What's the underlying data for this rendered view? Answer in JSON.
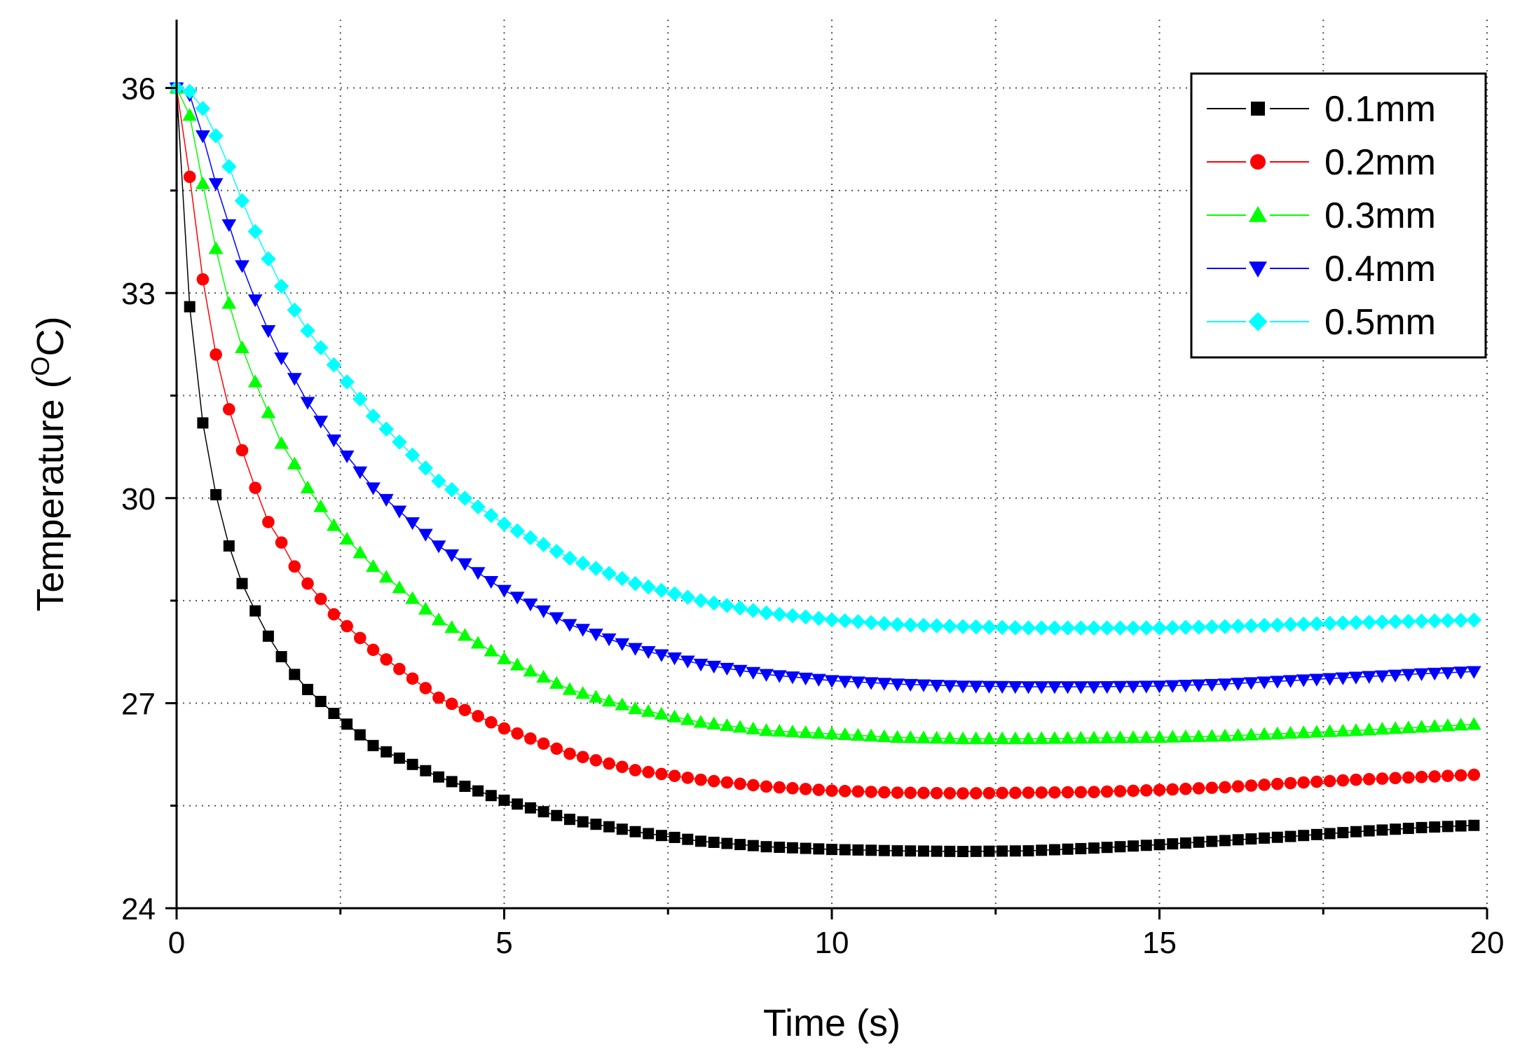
{
  "chart_data": {
    "type": "line",
    "title": "",
    "xlabel": "Time (s)",
    "ylabel": "Temperature (",
    "ylabel_unit_super": "O",
    "ylabel_unit_tail": "C)",
    "xlim": [
      0,
      20
    ],
    "ylim": [
      24,
      37
    ],
    "x_ticks": [
      0,
      5,
      10,
      15,
      20
    ],
    "x_tick_labels": [
      "0",
      "5",
      "10",
      "15",
      "20"
    ],
    "y_ticks": [
      24,
      27,
      30,
      33,
      36
    ],
    "y_tick_labels": [
      "24",
      "27",
      "30",
      "33",
      "36"
    ],
    "grid": true,
    "legend_position": "top-right",
    "x_start": 0,
    "x_step": 0.2,
    "series": [
      {
        "name": "0.1mm",
        "color": "#000000",
        "marker": "square",
        "anchors": [
          [
            0,
            36.0
          ],
          [
            0.2,
            32.8
          ],
          [
            0.4,
            31.1
          ],
          [
            0.6,
            30.05
          ],
          [
            0.8,
            29.3
          ],
          [
            1.0,
            28.75
          ],
          [
            1.2,
            28.35
          ],
          [
            1.4,
            27.98
          ],
          [
            1.6,
            27.68
          ],
          [
            1.8,
            27.42
          ],
          [
            2.0,
            27.2
          ],
          [
            2.4,
            26.85
          ],
          [
            3.0,
            26.38
          ],
          [
            4.0,
            25.92
          ],
          [
            5.0,
            25.58
          ],
          [
            6.0,
            25.3
          ],
          [
            7.0,
            25.12
          ],
          [
            8.0,
            24.98
          ],
          [
            9.0,
            24.9
          ],
          [
            10.0,
            24.86
          ],
          [
            11.0,
            24.84
          ],
          [
            12.0,
            24.83
          ],
          [
            13.0,
            24.84
          ],
          [
            14.0,
            24.88
          ],
          [
            15.0,
            24.93
          ],
          [
            16.0,
            24.99
          ],
          [
            17.0,
            25.05
          ],
          [
            18.0,
            25.12
          ],
          [
            19.0,
            25.18
          ],
          [
            20.0,
            25.22
          ]
        ]
      },
      {
        "name": "0.2mm",
        "color": "#ff0000",
        "marker": "circle",
        "anchors": [
          [
            0,
            36.0
          ],
          [
            0.2,
            34.7
          ],
          [
            0.4,
            33.2
          ],
          [
            0.6,
            32.1
          ],
          [
            0.8,
            31.3
          ],
          [
            1.0,
            30.7
          ],
          [
            1.2,
            30.15
          ],
          [
            1.4,
            29.65
          ],
          [
            1.6,
            29.35
          ],
          [
            1.8,
            29.0
          ],
          [
            2.0,
            28.75
          ],
          [
            2.4,
            28.3
          ],
          [
            3.0,
            27.78
          ],
          [
            4.0,
            27.08
          ],
          [
            5.0,
            26.63
          ],
          [
            6.0,
            26.26
          ],
          [
            7.0,
            26.02
          ],
          [
            8.0,
            25.88
          ],
          [
            9.0,
            25.78
          ],
          [
            10.0,
            25.72
          ],
          [
            11.0,
            25.69
          ],
          [
            12.0,
            25.68
          ],
          [
            13.0,
            25.69
          ],
          [
            14.0,
            25.7
          ],
          [
            15.0,
            25.73
          ],
          [
            16.0,
            25.77
          ],
          [
            17.0,
            25.83
          ],
          [
            18.0,
            25.88
          ],
          [
            19.0,
            25.92
          ],
          [
            20.0,
            25.96
          ]
        ]
      },
      {
        "name": "0.3mm",
        "color": "#00ff00",
        "marker": "triangle-up",
        "anchors": [
          [
            0,
            36.0
          ],
          [
            0.2,
            35.6
          ],
          [
            0.4,
            34.6
          ],
          [
            0.6,
            33.65
          ],
          [
            0.8,
            32.85
          ],
          [
            1.0,
            32.2
          ],
          [
            1.2,
            31.7
          ],
          [
            1.4,
            31.25
          ],
          [
            1.6,
            30.8
          ],
          [
            1.8,
            30.5
          ],
          [
            2.0,
            30.15
          ],
          [
            2.4,
            29.6
          ],
          [
            3.0,
            29.0
          ],
          [
            4.0,
            28.22
          ],
          [
            5.0,
            27.65
          ],
          [
            6.0,
            27.2
          ],
          [
            7.0,
            26.92
          ],
          [
            8.0,
            26.72
          ],
          [
            9.0,
            26.6
          ],
          [
            10.0,
            26.55
          ],
          [
            11.0,
            26.5
          ],
          [
            12.0,
            26.48
          ],
          [
            13.0,
            26.48
          ],
          [
            14.0,
            26.49
          ],
          [
            15.0,
            26.5
          ],
          [
            16.0,
            26.52
          ],
          [
            17.0,
            26.56
          ],
          [
            18.0,
            26.6
          ],
          [
            19.0,
            26.65
          ],
          [
            20.0,
            26.7
          ]
        ]
      },
      {
        "name": "0.4mm",
        "color": "#0000ff",
        "marker": "triangle-down",
        "anchors": [
          [
            0,
            36.0
          ],
          [
            0.2,
            35.9
          ],
          [
            0.4,
            35.3
          ],
          [
            0.6,
            34.6
          ],
          [
            0.8,
            34.0
          ],
          [
            1.0,
            33.4
          ],
          [
            1.2,
            32.9
          ],
          [
            1.4,
            32.45
          ],
          [
            1.6,
            32.05
          ],
          [
            1.8,
            31.75
          ],
          [
            2.0,
            31.4
          ],
          [
            2.4,
            30.85
          ],
          [
            3.0,
            30.15
          ],
          [
            4.0,
            29.3
          ],
          [
            5.0,
            28.65
          ],
          [
            6.0,
            28.15
          ],
          [
            7.0,
            27.8
          ],
          [
            8.0,
            27.57
          ],
          [
            9.0,
            27.42
          ],
          [
            10.0,
            27.33
          ],
          [
            11.0,
            27.28
          ],
          [
            12.0,
            27.25
          ],
          [
            13.0,
            27.24
          ],
          [
            14.0,
            27.24
          ],
          [
            15.0,
            27.25
          ],
          [
            16.0,
            27.28
          ],
          [
            17.0,
            27.33
          ],
          [
            18.0,
            27.38
          ],
          [
            19.0,
            27.43
          ],
          [
            20.0,
            27.47
          ]
        ]
      },
      {
        "name": "0.5mm",
        "color": "#00ffff",
        "marker": "diamond",
        "anchors": [
          [
            0,
            36.0
          ],
          [
            0.2,
            35.95
          ],
          [
            0.4,
            35.7
          ],
          [
            0.6,
            35.3
          ],
          [
            0.8,
            34.85
          ],
          [
            1.0,
            34.35
          ],
          [
            1.2,
            33.9
          ],
          [
            1.4,
            33.5
          ],
          [
            1.6,
            33.1
          ],
          [
            1.8,
            32.75
          ],
          [
            2.0,
            32.45
          ],
          [
            2.4,
            31.95
          ],
          [
            3.0,
            31.2
          ],
          [
            4.0,
            30.25
          ],
          [
            5.0,
            29.62
          ],
          [
            6.0,
            29.12
          ],
          [
            7.0,
            28.75
          ],
          [
            8.0,
            28.5
          ],
          [
            9.0,
            28.32
          ],
          [
            10.0,
            28.22
          ],
          [
            11.0,
            28.15
          ],
          [
            12.0,
            28.12
          ],
          [
            13.0,
            28.1
          ],
          [
            14.0,
            28.1
          ],
          [
            15.0,
            28.1
          ],
          [
            16.0,
            28.12
          ],
          [
            17.0,
            28.15
          ],
          [
            18.0,
            28.18
          ],
          [
            19.0,
            28.2
          ],
          [
            20.0,
            28.22
          ]
        ]
      }
    ]
  }
}
